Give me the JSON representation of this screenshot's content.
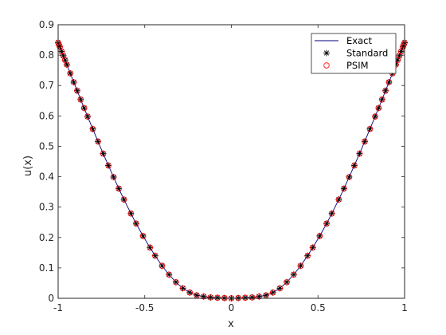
{
  "chart_data": {
    "type": "line",
    "title": "",
    "xlabel": "x",
    "ylabel": "u(x)",
    "xlim": [
      -1,
      1
    ],
    "ylim": [
      0,
      0.9
    ],
    "xticks": [
      -1,
      -0.5,
      0,
      0.5,
      1
    ],
    "xtick_labels": [
      "-1",
      "-0.5",
      "0",
      "0.5",
      "1"
    ],
    "yticks": [
      0,
      0.1,
      0.2,
      0.3,
      0.4,
      0.5,
      0.6,
      0.7,
      0.8,
      0.9
    ],
    "ytick_labels": [
      "0",
      "0.1",
      "0.2",
      "0.3",
      "0.4",
      "0.5",
      "0.6",
      "0.7",
      "0.8",
      "0.9"
    ],
    "grid": false,
    "legend_position": "top-right",
    "series": [
      {
        "name": "Exact",
        "style": "line",
        "color": "#00007f"
      },
      {
        "name": "Standard",
        "style": "asterisk",
        "color": "#000000"
      },
      {
        "name": "PSIM",
        "style": "circle",
        "color": "#ff0000"
      }
    ],
    "x": [
      -1.0,
      -0.995,
      -0.99,
      -0.98,
      -0.97,
      -0.96,
      -0.95,
      -0.93,
      -0.91,
      -0.89,
      -0.87,
      -0.85,
      -0.83,
      -0.8,
      -0.77,
      -0.74,
      -0.71,
      -0.68,
      -0.65,
      -0.62,
      -0.58,
      -0.55,
      -0.51,
      -0.47,
      -0.44,
      -0.4,
      -0.36,
      -0.32,
      -0.28,
      -0.24,
      -0.2,
      -0.16,
      -0.12,
      -0.08,
      -0.04,
      0.0,
      0.04,
      0.08,
      0.12,
      0.16,
      0.2,
      0.24,
      0.28,
      0.32,
      0.36,
      0.4,
      0.44,
      0.47,
      0.51,
      0.55,
      0.58,
      0.62,
      0.65,
      0.68,
      0.71,
      0.74,
      0.77,
      0.8,
      0.83,
      0.85,
      0.87,
      0.89,
      0.91,
      0.93,
      0.95,
      0.96,
      0.97,
      0.98,
      0.99,
      0.995,
      1.0
    ],
    "exact_y": [
      0.841,
      0.834,
      0.827,
      0.812,
      0.798,
      0.784,
      0.769,
      0.74,
      0.711,
      0.683,
      0.654,
      0.626,
      0.598,
      0.557,
      0.516,
      0.476,
      0.437,
      0.399,
      0.361,
      0.325,
      0.279,
      0.246,
      0.205,
      0.167,
      0.14,
      0.107,
      0.078,
      0.053,
      0.033,
      0.019,
      0.01,
      0.006,
      0.003,
      0.002,
      0.001,
      0.0,
      0.001,
      0.002,
      0.003,
      0.006,
      0.01,
      0.019,
      0.033,
      0.053,
      0.078,
      0.107,
      0.14,
      0.167,
      0.205,
      0.246,
      0.279,
      0.325,
      0.361,
      0.399,
      0.437,
      0.476,
      0.516,
      0.557,
      0.598,
      0.626,
      0.654,
      0.683,
      0.711,
      0.74,
      0.769,
      0.784,
      0.798,
      0.812,
      0.827,
      0.834,
      0.841
    ]
  }
}
